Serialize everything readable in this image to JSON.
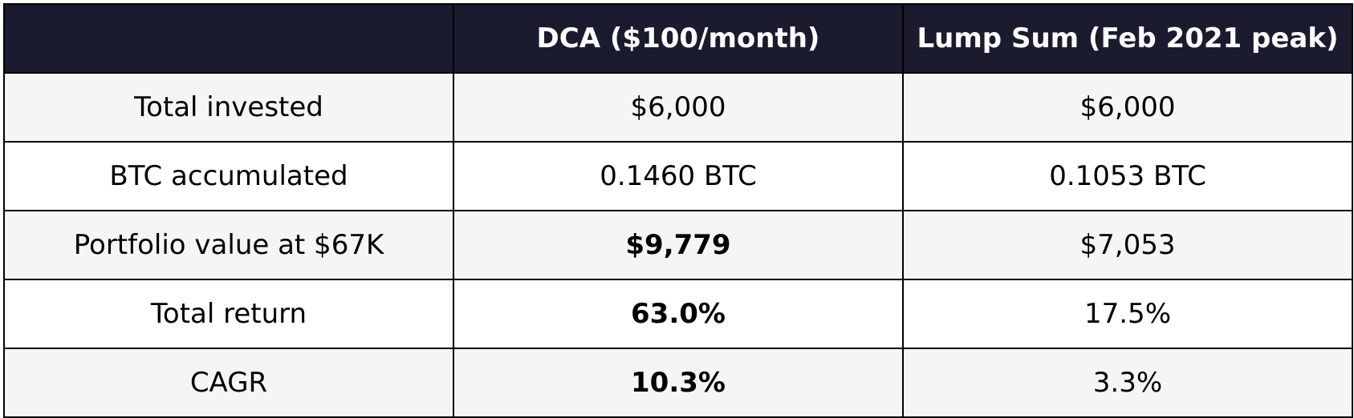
{
  "table": {
    "colors": {
      "header_bg": "#1a1b2e",
      "header_text": "#ffffff",
      "row_alt_bg": "#f5f5f5",
      "row_bg": "#ffffff",
      "border": "#000000"
    },
    "headers": [
      "",
      "DCA ($100/month)",
      "Lump Sum (Feb 2021 peak)"
    ],
    "rows": [
      {
        "label": "Total invested",
        "dca": "$6,000",
        "lump": "$6,000"
      },
      {
        "label": "BTC accumulated",
        "dca": "0.1460 BTC",
        "lump": "0.1053 BTC"
      },
      {
        "label": "Portfolio value at $67K",
        "dca": "$9,779",
        "lump": "$7,053"
      },
      {
        "label": "Total return",
        "dca": "63.0%",
        "lump": "17.5%"
      },
      {
        "label": "CAGR",
        "dca": "10.3%",
        "lump": "3.3%"
      }
    ]
  }
}
